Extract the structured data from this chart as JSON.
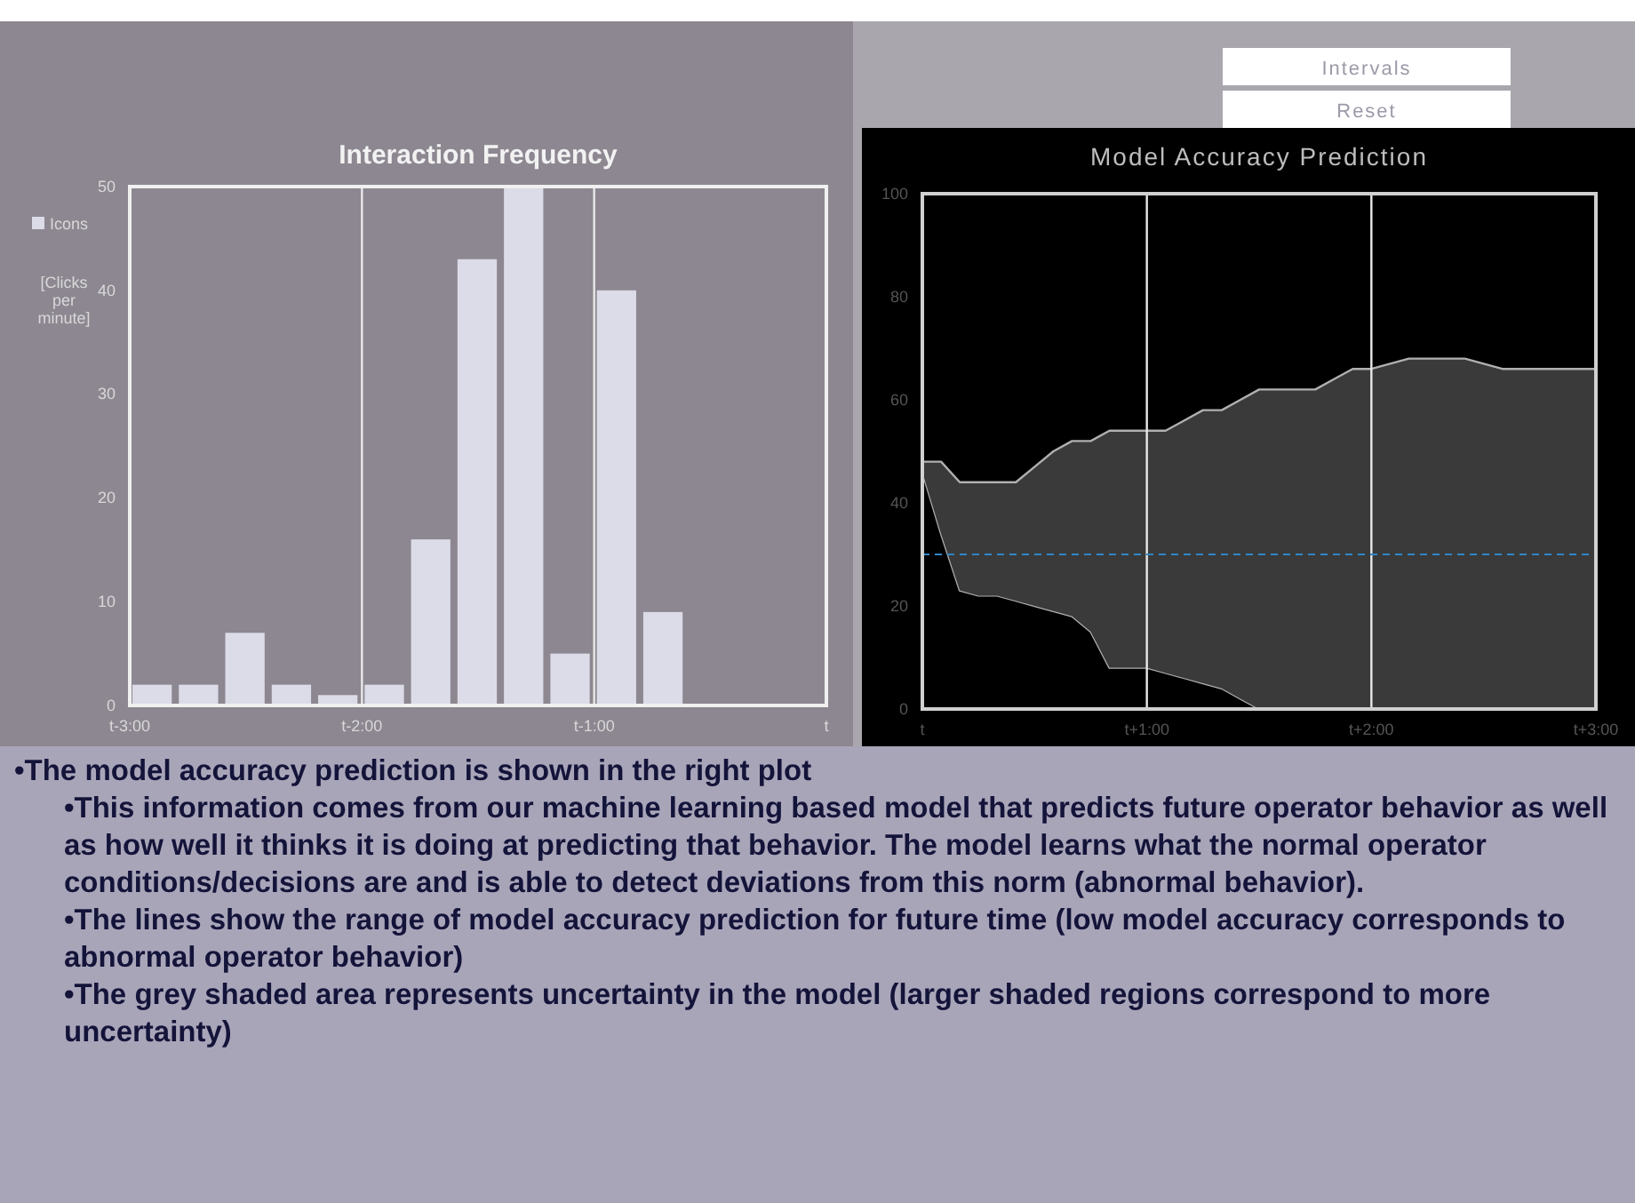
{
  "chart_data": [
    {
      "type": "bar",
      "title": "Interaction Frequency",
      "ylabel": "[Clicks per minute]",
      "categories": [
        "t-3:00",
        null,
        null,
        null,
        null,
        "t-2:00",
        null,
        null,
        null,
        null,
        "t-1:00",
        null,
        null,
        null,
        null,
        "t"
      ],
      "series": [
        {
          "name": "Icons",
          "color": "#dcdce8",
          "values": [
            2,
            2,
            7,
            2,
            1,
            2,
            16,
            43,
            50,
            5,
            40,
            9,
            null,
            null,
            null,
            null
          ]
        }
      ],
      "ylim": [
        0,
        50
      ],
      "yticks": [
        0,
        10,
        20,
        30,
        40,
        50
      ],
      "grid": "x",
      "legend": "left"
    },
    {
      "type": "area",
      "title": "Model Accuracy Prediction",
      "annotations": [
        "Intervals",
        "Reset"
      ],
      "stacked": true,
      "categories": [
        "t",
        null,
        null,
        null,
        null,
        null,
        null,
        null,
        null,
        null,
        null,
        null,
        "t+1:00",
        null,
        null,
        null,
        null,
        null,
        null,
        null,
        null,
        null,
        null,
        null,
        "t+2:00",
        null,
        null,
        null,
        null,
        null,
        null,
        null,
        null,
        null,
        null,
        null,
        "t+3:00"
      ],
      "series": [
        {
          "color": "#000000",
          "values": [
            46,
            34,
            23,
            22,
            22,
            21,
            20,
            19,
            18,
            15,
            8,
            8,
            8,
            7,
            6,
            5,
            4,
            2,
            0,
            0,
            0,
            0,
            0,
            0,
            0,
            0,
            0,
            0,
            0,
            0,
            0,
            0,
            0,
            0,
            0,
            0,
            0
          ]
        },
        {
          "color": "#3a3a3a",
          "values": [
            2,
            14,
            21,
            22,
            22,
            23,
            27,
            31,
            34,
            37,
            46,
            46,
            46,
            47,
            50,
            53,
            54,
            58,
            62,
            62,
            62,
            62,
            64,
            66,
            66,
            67,
            68,
            68,
            68,
            68,
            67,
            66,
            66,
            66,
            66,
            66,
            66
          ]
        }
      ],
      "ref_lines": [
        {
          "axis": "y",
          "value": 30,
          "color": "#2f86c8",
          "line_style": "dashed"
        }
      ],
      "ylim": [
        0,
        100
      ],
      "yticks": [
        0,
        20,
        40,
        60,
        80,
        100
      ],
      "grid": "x"
    },
    {
      "type": "other",
      "annotations": [
        "•The model accuracy prediction is shown in the right plot",
        "•This information comes from our machine learning based model that predicts future operator behavior as well as how well it thinks it is doing at predicting that behavior.  The model learns what the normal operator conditions/decisions are  and is able to detect deviations from this norm (abnormal behavior).",
        "•The lines show the range of model accuracy prediction for future time (low model accuracy corresponds to abnormal operator behavior)",
        "•The grey shaded area represents uncertainty in the model (larger shaded regions correspond to more uncertainty)"
      ]
    }
  ]
}
